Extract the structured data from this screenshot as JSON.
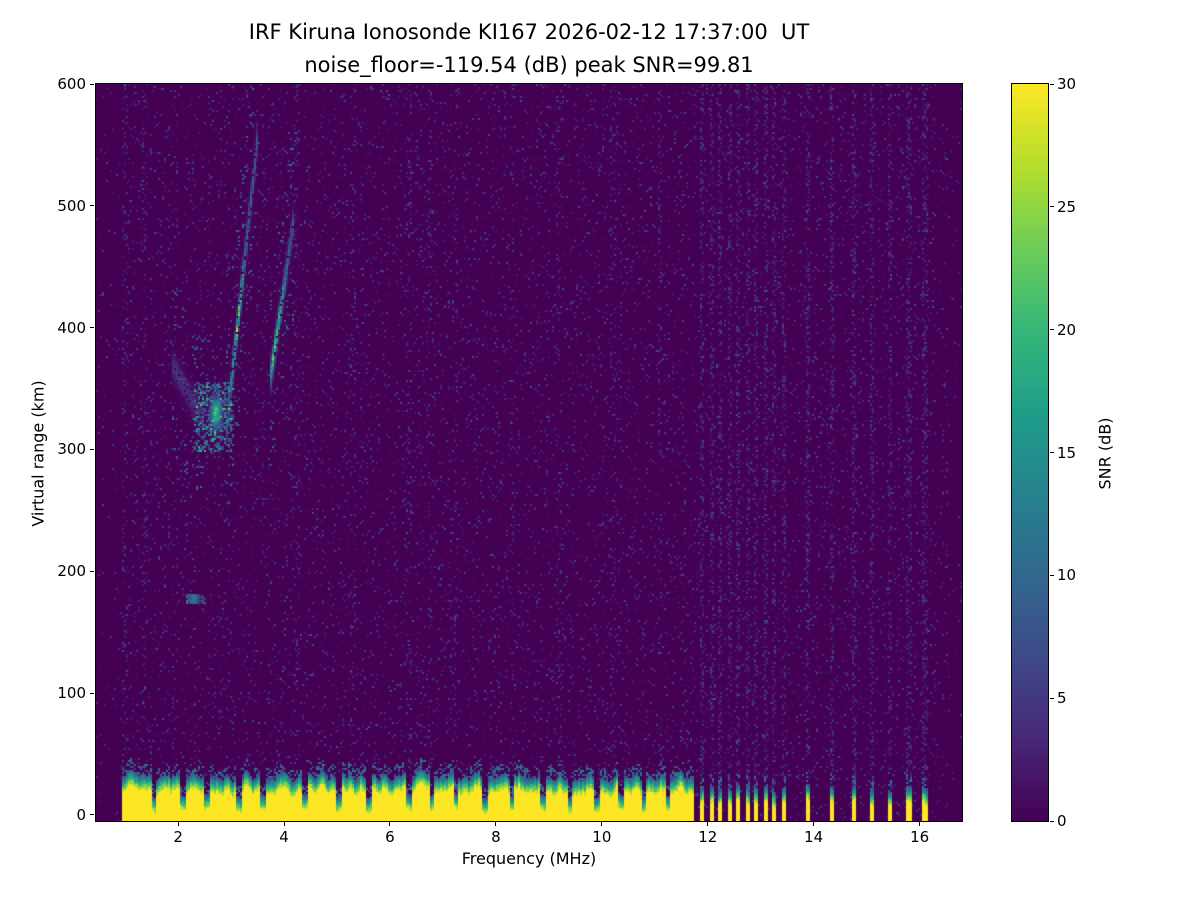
{
  "chart_data": {
    "type": "heatmap",
    "title": "IRF Kiruna Ionosonde KI167 2026-02-12 17:37:00  UT",
    "subtitle": "noise_floor=-119.54 (dB) peak SNR=99.81",
    "station": "IRF Kiruna Ionosonde KI167",
    "timestamp_ut": "2026-02-12 17:37:00",
    "noise_floor_db": -119.54,
    "peak_snr_db": 99.81,
    "xlabel": "Frequency (MHz)",
    "ylabel": "Virtual range (km)",
    "xlim": [
      0.45,
      16.8
    ],
    "ylim": [
      -5,
      600
    ],
    "xticks": [
      2,
      4,
      6,
      8,
      10,
      12,
      14,
      16
    ],
    "yticks": [
      0,
      100,
      200,
      300,
      400,
      500,
      600
    ],
    "grid": false,
    "colormap": "viridis",
    "colorbar": {
      "label": "SNR (dB)",
      "min": 0,
      "max": 30,
      "ticks": [
        0,
        5,
        10,
        15,
        20,
        25,
        30
      ]
    },
    "features": {
      "background_snr_db": 0,
      "transmit_band_mhz": [
        0.95,
        16.3
      ],
      "ground_echo": {
        "freq_range_mhz": [
          0.95,
          11.75
        ],
        "solid_top_km": 20,
        "fringe_top_km": 34,
        "peak_db": 30
      },
      "ground_notch_freqs_mhz": [
        1.55,
        2.1,
        2.55,
        3.15,
        3.6,
        4.4,
        5.05,
        5.6,
        6.35,
        6.8,
        7.25,
        7.8,
        8.3,
        8.9,
        9.4,
        9.9,
        10.35,
        10.8,
        11.25
      ],
      "interference_freqs_mhz": [
        11.9,
        12.07,
        12.24,
        12.41,
        12.58,
        12.75,
        12.92,
        13.09,
        13.26,
        13.43,
        13.9,
        14.35,
        14.75,
        15.1,
        15.45,
        15.8,
        16.1
      ],
      "faint_streak_freqs_mhz": [
        1.0,
        1.35,
        4.25,
        5.3,
        6.35,
        6.75,
        7.25,
        8.3,
        9.2,
        10.2,
        11.1
      ],
      "echo_traces": [
        {
          "name": "F-layer trace 1",
          "style": "line",
          "freq_range_mhz": [
            2.92,
            3.5
          ],
          "range_km": [
            320,
            555
          ],
          "bright_km": 405,
          "peak_db": 30,
          "width_km": 12
        },
        {
          "name": "F-layer trace 2",
          "style": "line",
          "freq_range_mhz": [
            3.72,
            4.18
          ],
          "range_km": [
            352,
            487
          ],
          "bright_km": 388,
          "peak_db": 27,
          "width_km": 11
        },
        {
          "name": "diffuse echo patch",
          "style": "patch",
          "freq_range_mhz": [
            2.3,
            3.05
          ],
          "range_km": [
            298,
            356
          ],
          "bright_f_mhz": 2.72,
          "bright_km": 330,
          "peak_db": 25
        },
        {
          "name": "faint descending arc",
          "style": "line",
          "freq_range_mhz": [
            1.9,
            2.5
          ],
          "range_km": [
            368,
            322
          ],
          "peak_db": 8,
          "width_km": 10
        },
        {
          "name": "E-region dash",
          "style": "patch",
          "freq_range_mhz": [
            2.15,
            2.52
          ],
          "range_km": [
            173,
            182
          ],
          "bright_f_mhz": 2.3,
          "bright_km": 177,
          "peak_db": 14
        }
      ]
    }
  }
}
